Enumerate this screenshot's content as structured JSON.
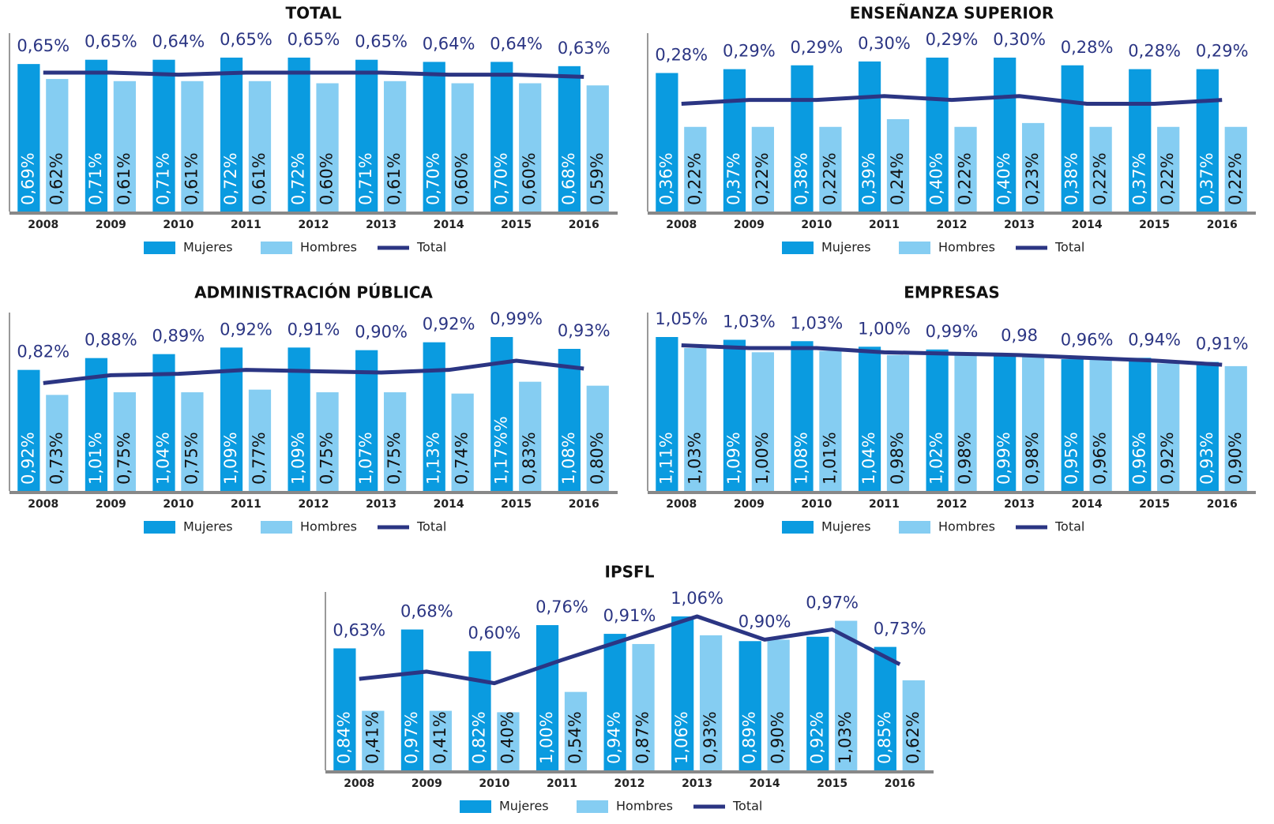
{
  "chart_data": [
    {
      "type": "bar",
      "title": "TOTAL",
      "categories": [
        "2008",
        "2009",
        "2010",
        "2011",
        "2012",
        "2013",
        "2014",
        "2015",
        "2016"
      ],
      "series": [
        {
          "name": "Mujeres",
          "color": "#0a9be0",
          "values": [
            0.69,
            0.71,
            0.71,
            0.72,
            0.72,
            0.71,
            0.7,
            0.7,
            0.68
          ],
          "value_labels": [
            "0,69%",
            "0,71%",
            "0,71%",
            "0,72%",
            "0,72%",
            "0,71%",
            "0,70%",
            "0,70%",
            "0,68%"
          ]
        },
        {
          "name": "Hombres",
          "color": "#85cdf2",
          "values": [
            0.62,
            0.61,
            0.61,
            0.61,
            0.6,
            0.61,
            0.6,
            0.6,
            0.59
          ],
          "value_labels": [
            "0,62%",
            "0,61%",
            "0,61%",
            "0,61%",
            "0,60%",
            "0,61%",
            "0,60%",
            "0,60%",
            "0,59%"
          ]
        },
        {
          "name": "Total",
          "type": "line",
          "color": "#2b3583",
          "values": [
            0.65,
            0.65,
            0.64,
            0.65,
            0.65,
            0.65,
            0.64,
            0.64,
            0.63
          ],
          "value_labels": [
            "0,65%",
            "0,65%",
            "0,64%",
            "0,65%",
            "0,65%",
            "0,65%",
            "0,64%",
            "0,64%",
            "0,63%"
          ]
        }
      ]
    },
    {
      "type": "bar",
      "title": "ENSEÑANZA SUPERIOR",
      "categories": [
        "2008",
        "2009",
        "2010",
        "2011",
        "2012",
        "2013",
        "2014",
        "2015",
        "2016"
      ],
      "series": [
        {
          "name": "Mujeres",
          "color": "#0a9be0",
          "values": [
            0.36,
            0.37,
            0.38,
            0.39,
            0.4,
            0.4,
            0.38,
            0.37,
            0.37
          ],
          "value_labels": [
            "0,36%",
            "0,37%",
            "0,38%",
            "0,39%",
            "0,40%",
            "0,40%",
            "0,38%",
            "0,37%",
            "0,37%"
          ]
        },
        {
          "name": "Hombres",
          "color": "#85cdf2",
          "values": [
            0.22,
            0.22,
            0.22,
            0.24,
            0.22,
            0.23,
            0.22,
            0.22,
            0.22
          ],
          "value_labels": [
            "0,22%",
            "0,22%",
            "0,22%",
            "0,24%",
            "0,22%",
            "0,23%",
            "0,22%",
            "0,22%",
            "0,22%"
          ]
        },
        {
          "name": "Total",
          "type": "line",
          "color": "#2b3583",
          "values": [
            0.28,
            0.29,
            0.29,
            0.3,
            0.29,
            0.3,
            0.28,
            0.28,
            0.29
          ],
          "value_labels": [
            "0,28%",
            "0,29%",
            "0,29%",
            "0,30%",
            "0,29%",
            "0,30%",
            "0,28%",
            "0,28%",
            "0,29%"
          ]
        }
      ]
    },
    {
      "type": "bar",
      "title": "ADMINISTRACIÓN PÚBLICA",
      "categories": [
        "2008",
        "2009",
        "2010",
        "2011",
        "2012",
        "2013",
        "2014",
        "2015",
        "2016"
      ],
      "series": [
        {
          "name": "Mujeres",
          "color": "#0a9be0",
          "values": [
            0.92,
            1.01,
            1.04,
            1.09,
            1.09,
            1.07,
            1.13,
            1.17,
            1.08
          ],
          "value_labels": [
            "0,92%",
            "1,01%",
            "1,04%",
            "1,09%",
            "1,09%",
            "1,07%",
            "1,13%",
            "1,17%%",
            "1,08%"
          ]
        },
        {
          "name": "Hombres",
          "color": "#85cdf2",
          "values": [
            0.73,
            0.75,
            0.75,
            0.77,
            0.75,
            0.75,
            0.74,
            0.83,
            0.8
          ],
          "value_labels": [
            "0,73%",
            "0,75%",
            "0,75%",
            "0,77%",
            "0,75%",
            "0,75%",
            "0,74%",
            "0,83%",
            "0,80%"
          ]
        },
        {
          "name": "Total",
          "type": "line",
          "color": "#2b3583",
          "values": [
            0.82,
            0.88,
            0.89,
            0.92,
            0.91,
            0.9,
            0.92,
            0.99,
            0.93
          ],
          "value_labels": [
            "0,82%",
            "0,88%",
            "0,89%",
            "0,92%",
            "0,91%",
            "0,90%",
            "0,92%",
            "0,99%",
            "0,93%"
          ]
        }
      ]
    },
    {
      "type": "bar",
      "title": "EMPRESAS",
      "categories": [
        "2008",
        "2009",
        "2010",
        "2011",
        "2012",
        "2013",
        "2014",
        "2015",
        "2016"
      ],
      "series": [
        {
          "name": "Mujeres",
          "color": "#0a9be0",
          "values": [
            1.11,
            1.09,
            1.08,
            1.04,
            1.02,
            0.99,
            0.95,
            0.96,
            0.93
          ],
          "value_labels": [
            "1,11%",
            "1,09%",
            "1,08%",
            "1,04%",
            "1,02%",
            "0,99%",
            "0,95%",
            "0,96%",
            "0,93%"
          ]
        },
        {
          "name": "Hombres",
          "color": "#85cdf2",
          "values": [
            1.03,
            1.0,
            1.01,
            0.98,
            0.98,
            0.98,
            0.96,
            0.92,
            0.9
          ],
          "value_labels": [
            "1,03%",
            "1,00%",
            "1,01%",
            "0,98%",
            "0,98%",
            "0,98%",
            "0,96%",
            "0,92%",
            "0,90%"
          ]
        },
        {
          "name": "Total",
          "type": "line",
          "color": "#2b3583",
          "values": [
            1.05,
            1.03,
            1.03,
            1.0,
            0.99,
            0.98,
            0.96,
            0.94,
            0.91
          ],
          "value_labels": [
            "1,05%",
            "1,03%",
            "1,03%",
            "1,00%",
            "0,99%",
            "0,98",
            "0,96%",
            "0,94%",
            "0,91%"
          ]
        }
      ]
    },
    {
      "type": "bar",
      "title": "IPSFL",
      "categories": [
        "2008",
        "2009",
        "2010",
        "2011",
        "2012",
        "2013",
        "2014",
        "2015",
        "2016"
      ],
      "series": [
        {
          "name": "Mujeres",
          "color": "#0a9be0",
          "values": [
            0.84,
            0.97,
            0.82,
            1.0,
            0.94,
            1.06,
            0.89,
            0.92,
            0.85
          ],
          "value_labels": [
            "0,84%",
            "0,97%",
            "0,82%",
            "1,00%",
            "0,94%",
            "1,06%",
            "0,89%",
            "0,92%",
            "0,85%"
          ]
        },
        {
          "name": "Hombres",
          "color": "#85cdf2",
          "values": [
            0.41,
            0.41,
            0.4,
            0.54,
            0.87,
            0.93,
            0.9,
            1.03,
            0.62
          ],
          "value_labels": [
            "0,41%",
            "0,41%",
            "0,40%",
            "0,54%",
            "0,87%",
            "0,93%",
            "0,90%",
            "1,03%",
            "0,62%"
          ]
        },
        {
          "name": "Total",
          "type": "line",
          "color": "#2b3583",
          "values": [
            0.63,
            0.68,
            0.6,
            0.76,
            0.91,
            1.06,
            0.9,
            0.97,
            0.73
          ],
          "value_labels": [
            "0,63%",
            "0,68%",
            "0,60%",
            "0,76%",
            "0,91%",
            "1,06%",
            "0,90%",
            "0,97%",
            "0,73%"
          ]
        }
      ]
    }
  ]
}
